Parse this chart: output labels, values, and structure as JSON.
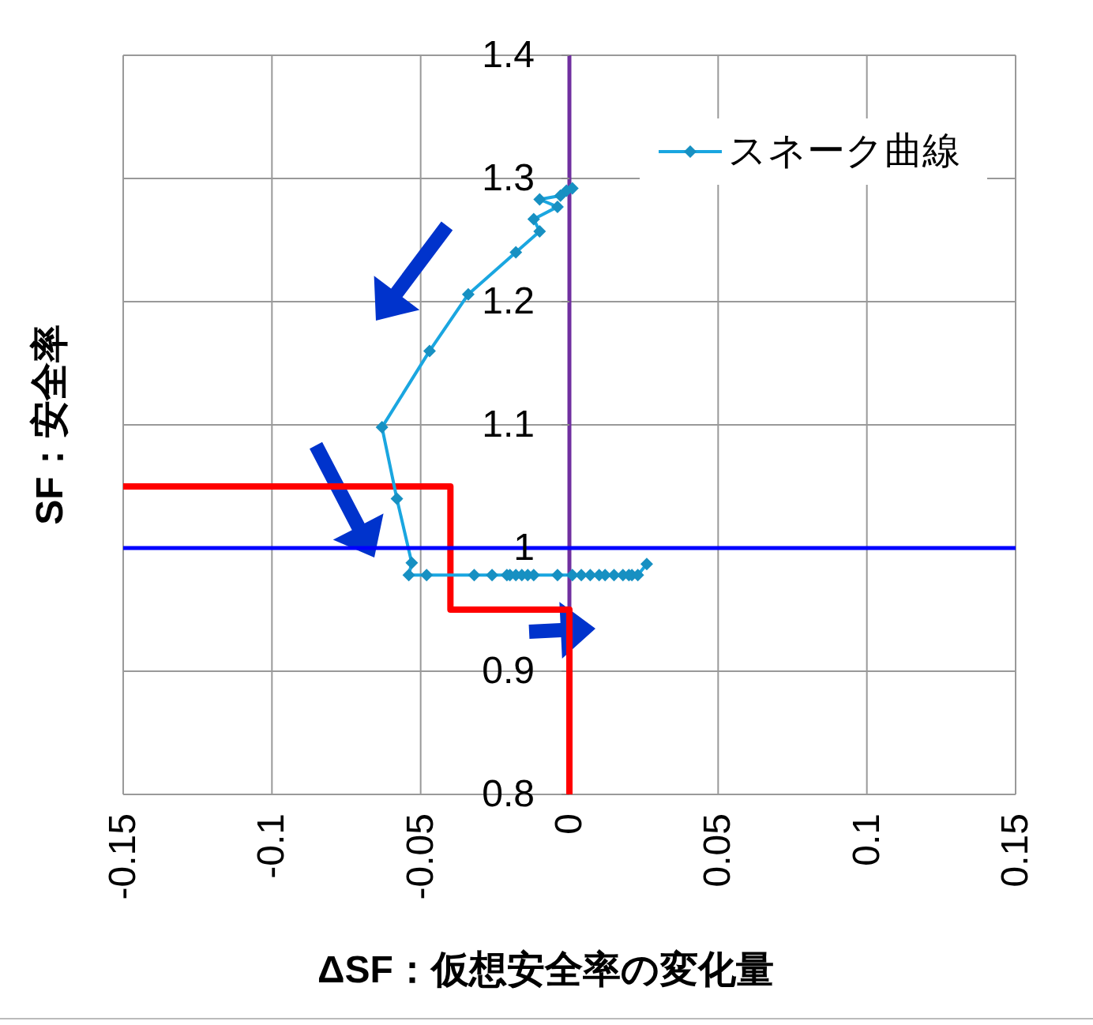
{
  "chart_data": {
    "type": "line",
    "xlabel": "ΔSF：仮想安全率の変化量",
    "ylabel": "SF：安全率",
    "xlim": [
      -0.15,
      0.15
    ],
    "xticks": [
      -0.15,
      {
        "value": -0.1,
        "label": "-0.1"
      },
      -0.05,
      0,
      0.05,
      {
        "value": 0.1,
        "label": "0.1"
      },
      0.15
    ],
    "ylim": [
      0.8,
      1.4
    ],
    "yticks": [
      0.8,
      0.9,
      1,
      1.1,
      1.2,
      1.3,
      1.4
    ],
    "grid": true,
    "legend": "top right",
    "marker": "diamond",
    "line_style": "solid",
    "series": [
      {
        "name": "スネーク曲線",
        "color": "#1aa6e0",
        "x": [
          0.001,
          -0.001,
          -0.003,
          -0.01,
          -0.004,
          -0.012,
          -0.01,
          -0.018,
          -0.034,
          -0.047,
          -0.063,
          -0.058,
          -0.053,
          -0.054,
          -0.048,
          -0.032,
          -0.026,
          -0.021,
          -0.02,
          -0.018,
          -0.016,
          -0.014,
          -0.012,
          -0.004,
          0.001,
          0.004,
          0.007,
          0.01,
          0.012,
          0.015,
          0.018,
          0.02,
          0.021,
          0.023,
          0.026
        ],
        "values": [
          1.292,
          1.29,
          1.286,
          1.283,
          1.277,
          1.267,
          1.257,
          1.24,
          1.206,
          1.16,
          1.098,
          1.04,
          0.988,
          0.978,
          0.978,
          0.978,
          0.978,
          0.978,
          0.978,
          0.978,
          0.978,
          0.978,
          0.978,
          0.978,
          0.978,
          0.978,
          0.978,
          0.978,
          0.978,
          0.978,
          0.978,
          0.978,
          0.978,
          0.978,
          0.987
        ]
      },
      {
        "color": "#ff0000",
        "marker": "none",
        "x": [
          -0.15,
          -0.04,
          -0.04,
          0,
          0
        ],
        "values": [
          1.05,
          1.05,
          0.95,
          0.95,
          0.8
        ]
      }
    ],
    "ref_lines": [
      {
        "axis": "y",
        "value": 1,
        "color": "#0000ff"
      }
    ]
  }
}
